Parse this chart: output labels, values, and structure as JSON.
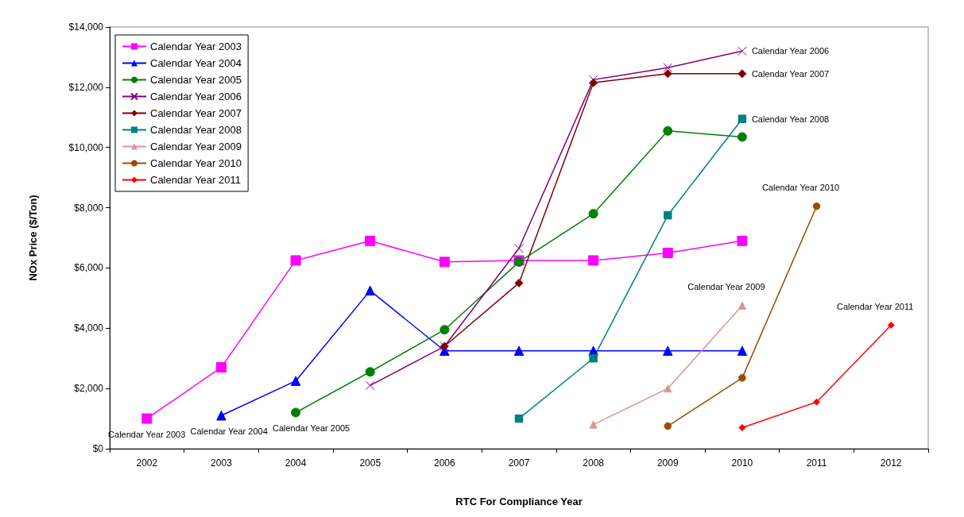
{
  "chart_data": {
    "type": "line",
    "xlabel": "RTC For Compliance Year",
    "ylabel": "NOx Price ($/Ton)",
    "categories": [
      "2002",
      "2003",
      "2004",
      "2005",
      "2006",
      "2007",
      "2008",
      "2009",
      "2010",
      "2011",
      "2012"
    ],
    "ylim": [
      0,
      14000
    ],
    "yticks": [
      {
        "value": 0,
        "label": "$0"
      },
      {
        "value": 2000,
        "label": "$2,000"
      },
      {
        "value": 4000,
        "label": "$4,000"
      },
      {
        "value": 6000,
        "label": "$6,000"
      },
      {
        "value": 8000,
        "label": "$8,000"
      },
      {
        "value": 10000,
        "label": "$10,000"
      },
      {
        "value": 12000,
        "label": "$12,000"
      },
      {
        "value": 14000,
        "label": "$14,000"
      }
    ],
    "grid": false,
    "legend": "top left",
    "line_style": "solid",
    "series": [
      {
        "name": "Calendar Year 2003",
        "color": "#ff00ff",
        "marker": "square",
        "values": [
          1000,
          2700,
          6250,
          6900,
          6200,
          6250,
          6250,
          6500,
          6900,
          null,
          null
        ]
      },
      {
        "name": "Calendar Year 2004",
        "color": "#0000ff",
        "marker": "triangle",
        "values": [
          null,
          1100,
          2250,
          5250,
          3250,
          3250,
          3250,
          3250,
          3250,
          null,
          null
        ]
      },
      {
        "name": "Calendar Year 2005",
        "color": "#008000",
        "marker": "circle",
        "values": [
          null,
          null,
          1200,
          2550,
          3950,
          6200,
          7800,
          10550,
          10350,
          null,
          null
        ]
      },
      {
        "name": "Calendar Year 2006",
        "color": "#800080",
        "marker": "cross",
        "values": [
          null,
          null,
          null,
          2100,
          3400,
          6650,
          12250,
          12650,
          13200,
          null,
          null
        ]
      },
      {
        "name": "Calendar Year 2007",
        "color": "#800000",
        "marker": "diamond",
        "values": [
          null,
          null,
          null,
          null,
          3400,
          5500,
          12150,
          12450,
          12450,
          null,
          null
        ]
      },
      {
        "name": "Calendar Year 2008",
        "color": "#008080",
        "marker": "square",
        "values": [
          null,
          null,
          null,
          null,
          null,
          1000,
          3000,
          7750,
          10950,
          null,
          null
        ]
      },
      {
        "name": "Calendar Year 2009",
        "color": "#d99694",
        "marker": "triangle",
        "values": [
          null,
          null,
          null,
          null,
          null,
          null,
          800,
          2000,
          4750,
          null,
          null
        ]
      },
      {
        "name": "Calendar Year 2010",
        "color": "#994c00",
        "marker": "circle",
        "values": [
          null,
          null,
          null,
          null,
          null,
          null,
          null,
          750,
          2350,
          8050,
          null
        ]
      },
      {
        "name": "Calendar Year 2011",
        "color": "#ff0000",
        "marker": "diamond",
        "values": [
          null,
          null,
          null,
          null,
          null,
          null,
          null,
          null,
          700,
          1550,
          4100
        ]
      }
    ],
    "annotations": [
      {
        "text": "Calendar Year 2003",
        "x": "2002",
        "y": 1000
      },
      {
        "text": "Calendar Year 2004",
        "x": "2003",
        "y": 1100
      },
      {
        "text": "Calendar Year 2005",
        "x": "2004",
        "y": 1200
      },
      {
        "text": "Calendar Year 2006",
        "x": "2010",
        "y": 13200
      },
      {
        "text": "Calendar Year 2007",
        "x": "2010",
        "y": 12450
      },
      {
        "text": "Calendar Year 2008",
        "x": "2010",
        "y": 10950
      },
      {
        "text": "Calendar Year 2009",
        "x": "2010",
        "y": 4750
      },
      {
        "text": "Calendar Year 2010",
        "x": "2011",
        "y": 8050
      },
      {
        "text": "Calendar Year 2011",
        "x": "2012",
        "y": 4100
      }
    ]
  }
}
